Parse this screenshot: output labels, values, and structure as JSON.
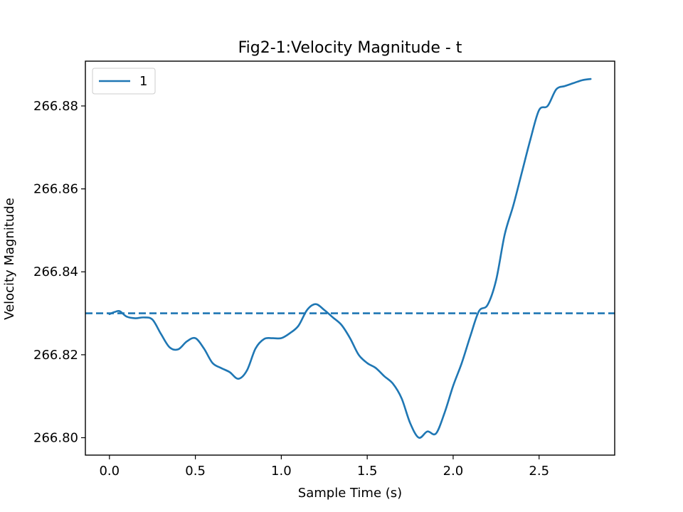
{
  "chart_data": {
    "type": "line",
    "title": "Fig2-1:Velocity Magnitude - t",
    "xlabel": "Sample Time (s)",
    "ylabel": "Velocity Magnitude",
    "xlim": [
      -0.14,
      2.94
    ],
    "ylim": [
      266.7958,
      266.8908
    ],
    "xticks": [
      0.0,
      0.5,
      1.0,
      1.5,
      2.0,
      2.5
    ],
    "xtick_labels": [
      "0.0",
      "0.5",
      "1.0",
      "1.5",
      "2.0",
      "2.5"
    ],
    "yticks": [
      266.8,
      266.82,
      266.84,
      266.86,
      266.88
    ],
    "ytick_labels": [
      "266.80",
      "266.82",
      "266.84",
      "266.86",
      "266.88"
    ],
    "grid": false,
    "legend_position": "top-left",
    "colors": {
      "series": "#1f77b4",
      "reference": "#1f77b4"
    },
    "series": [
      {
        "name": "1",
        "style": "solid",
        "x": [
          0.0,
          0.03,
          0.06,
          0.1,
          0.15,
          0.2,
          0.25,
          0.3,
          0.35,
          0.4,
          0.45,
          0.5,
          0.55,
          0.6,
          0.65,
          0.7,
          0.75,
          0.8,
          0.85,
          0.9,
          0.95,
          1.0,
          1.05,
          1.1,
          1.15,
          1.2,
          1.25,
          1.3,
          1.35,
          1.4,
          1.45,
          1.5,
          1.55,
          1.6,
          1.65,
          1.7,
          1.75,
          1.8,
          1.85,
          1.9,
          1.95,
          2.0,
          2.05,
          2.1,
          2.15,
          2.2,
          2.25,
          2.3,
          2.35,
          2.4,
          2.45,
          2.5,
          2.55,
          2.6,
          2.65,
          2.7,
          2.75,
          2.8
        ],
        "values": [
          266.8298,
          266.8303,
          266.8305,
          266.8292,
          266.8288,
          266.829,
          266.8285,
          266.825,
          266.8218,
          266.8213,
          266.8232,
          266.824,
          266.8215,
          266.818,
          266.8168,
          266.8158,
          266.8142,
          266.8162,
          266.8215,
          266.8238,
          266.824,
          266.824,
          266.8252,
          266.827,
          266.8308,
          266.8322,
          266.8308,
          266.829,
          266.8272,
          266.824,
          266.82,
          266.818,
          266.8168,
          266.8148,
          266.813,
          266.8095,
          266.8035,
          266.8,
          266.8015,
          266.801,
          266.806,
          266.8125,
          266.818,
          266.8245,
          266.8305,
          266.832,
          266.838,
          266.849,
          266.856,
          266.864,
          266.872,
          266.879,
          266.88,
          266.884,
          266.8848,
          266.8855,
          266.8862,
          266.8865
        ]
      }
    ],
    "reference_line": {
      "style": "dashed",
      "y": 266.83
    }
  }
}
